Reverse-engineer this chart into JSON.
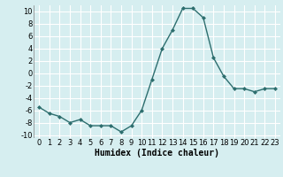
{
  "x": [
    0,
    1,
    2,
    3,
    4,
    5,
    6,
    7,
    8,
    9,
    10,
    11,
    12,
    13,
    14,
    15,
    16,
    17,
    18,
    19,
    20,
    21,
    22,
    23
  ],
  "y": [
    -5.5,
    -6.5,
    -7.0,
    -8.0,
    -7.5,
    -8.5,
    -8.5,
    -8.5,
    -9.5,
    -8.5,
    -6.0,
    -1.0,
    4.0,
    7.0,
    10.5,
    10.5,
    9.0,
    2.5,
    -0.5,
    -2.5,
    -2.5,
    -3.0,
    -2.5,
    -2.5
  ],
  "line_color": "#2d6e6e",
  "marker": "D",
  "marker_size": 2.0,
  "bg_color": "#d6eef0",
  "grid_color": "#ffffff",
  "grid_minor_color": "#e8f6f7",
  "xlabel": "Humidex (Indice chaleur)",
  "xlabel_fontsize": 7,
  "xlim": [
    -0.5,
    23.5
  ],
  "ylim": [
    -10.5,
    11
  ],
  "yticks": [
    -10,
    -8,
    -6,
    -4,
    -2,
    0,
    2,
    4,
    6,
    8,
    10
  ],
  "xticks": [
    0,
    1,
    2,
    3,
    4,
    5,
    6,
    7,
    8,
    9,
    10,
    11,
    12,
    13,
    14,
    15,
    16,
    17,
    18,
    19,
    20,
    21,
    22,
    23
  ],
  "tick_fontsize": 6,
  "line_width": 1.0
}
